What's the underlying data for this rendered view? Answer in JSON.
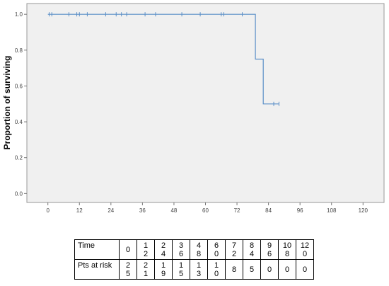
{
  "chart_data": {
    "type": "line",
    "subtype": "kaplan-meier",
    "ylabel": "Proportion of surviving",
    "xlabel": "",
    "xlim": [
      -8,
      128
    ],
    "ylim": [
      -0.05,
      1.06
    ],
    "xticks": [
      0,
      12,
      24,
      36,
      48,
      60,
      72,
      84,
      96,
      108,
      120
    ],
    "xtick_labels": [
      "0",
      "12",
      "24",
      "36",
      "48",
      "60",
      "72",
      "84",
      "96",
      "108",
      "120"
    ],
    "yticks": [
      0.0,
      0.2,
      0.4,
      0.6,
      0.8,
      1.0
    ],
    "ytick_labels": [
      "0.0",
      "0.2",
      "0.4",
      "0.6",
      "0.8",
      "1.0"
    ],
    "grid": false,
    "background": "#f0f0f0",
    "line_color": "#5b8fc7",
    "steps": [
      {
        "x": 0,
        "y": 1.0
      },
      {
        "x": 79,
        "y": 1.0
      },
      {
        "x": 79,
        "y": 0.75
      },
      {
        "x": 82,
        "y": 0.75
      },
      {
        "x": 82,
        "y": 0.5
      },
      {
        "x": 88,
        "y": 0.5
      }
    ],
    "censored": [
      {
        "x": 0.5,
        "y": 1.0
      },
      {
        "x": 1.5,
        "y": 1.0
      },
      {
        "x": 8,
        "y": 1.0
      },
      {
        "x": 11,
        "y": 1.0
      },
      {
        "x": 12,
        "y": 1.0
      },
      {
        "x": 15,
        "y": 1.0
      },
      {
        "x": 22,
        "y": 1.0
      },
      {
        "x": 26,
        "y": 1.0
      },
      {
        "x": 28,
        "y": 1.0
      },
      {
        "x": 30,
        "y": 1.0
      },
      {
        "x": 37,
        "y": 1.0
      },
      {
        "x": 41,
        "y": 1.0
      },
      {
        "x": 51,
        "y": 1.0
      },
      {
        "x": 58,
        "y": 1.0
      },
      {
        "x": 66,
        "y": 1.0
      },
      {
        "x": 67,
        "y": 1.0
      },
      {
        "x": 74,
        "y": 1.0
      },
      {
        "x": 86,
        "y": 0.5
      },
      {
        "x": 88,
        "y": 0.5
      }
    ]
  },
  "risk_table": {
    "row1_label": "Time",
    "row2_label": "Pts at risk",
    "times": [
      "0",
      "1\n2",
      "2\n4",
      "3\n6",
      "4\n8",
      "6\n0",
      "7\n2",
      "8\n4",
      "9\n6",
      "10\n8",
      "12\n0"
    ],
    "at_risk": [
      "2\n5",
      "2\n1",
      "1\n9",
      "1\n5",
      "1\n3",
      "1\n0",
      "8",
      "5",
      "0",
      "0",
      "0"
    ]
  }
}
